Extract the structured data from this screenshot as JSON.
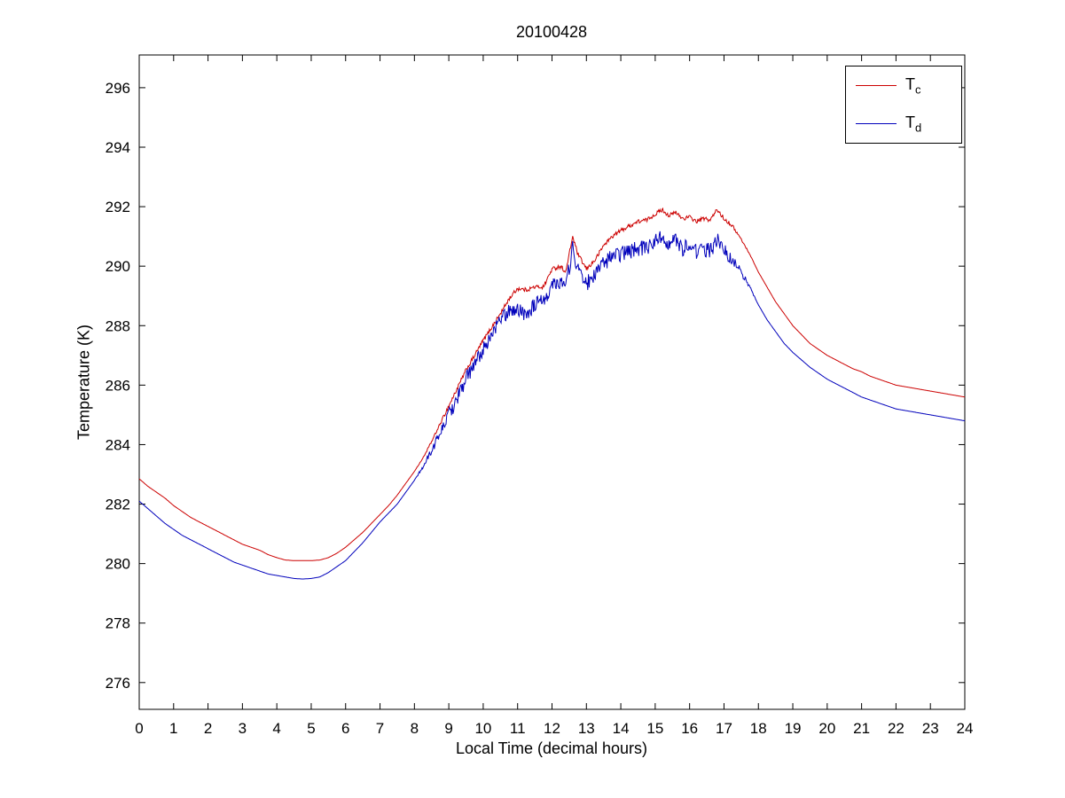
{
  "figure": {
    "background": "#ffffff",
    "axis_color": "#000000"
  },
  "chart_data": {
    "type": "line",
    "title": "20100428",
    "xlabel": "Local Time (decimal hours)",
    "ylabel": "Temperature (K)",
    "xlim": [
      0,
      24
    ],
    "ylim": [
      275.1,
      297.1
    ],
    "xticks": [
      0,
      1,
      2,
      3,
      4,
      5,
      6,
      7,
      8,
      9,
      10,
      11,
      12,
      13,
      14,
      15,
      16,
      17,
      18,
      19,
      20,
      21,
      22,
      23,
      24
    ],
    "yticks": [
      276,
      278,
      280,
      282,
      284,
      286,
      288,
      290,
      292,
      294,
      296
    ],
    "grid": false,
    "legend_position": "top-right",
    "series": [
      {
        "name": "T",
        "subscript": "c",
        "color": "#cc0000",
        "noise": 0.07,
        "points": [
          [
            0,
            282.85
          ],
          [
            0.25,
            282.6
          ],
          [
            0.5,
            282.4
          ],
          [
            0.75,
            282.2
          ],
          [
            1,
            281.95
          ],
          [
            1.25,
            281.75
          ],
          [
            1.5,
            281.55
          ],
          [
            1.75,
            281.4
          ],
          [
            2,
            281.25
          ],
          [
            2.25,
            281.1
          ],
          [
            2.5,
            280.95
          ],
          [
            2.75,
            280.8
          ],
          [
            3,
            280.65
          ],
          [
            3.25,
            280.55
          ],
          [
            3.5,
            280.45
          ],
          [
            3.75,
            280.3
          ],
          [
            4,
            280.2
          ],
          [
            4.25,
            280.12
          ],
          [
            4.5,
            280.1
          ],
          [
            4.75,
            280.1
          ],
          [
            5,
            280.1
          ],
          [
            5.25,
            280.12
          ],
          [
            5.5,
            280.2
          ],
          [
            5.75,
            280.35
          ],
          [
            6,
            280.55
          ],
          [
            6.25,
            280.8
          ],
          [
            6.5,
            281.05
          ],
          [
            6.75,
            281.35
          ],
          [
            7,
            281.65
          ],
          [
            7.25,
            281.95
          ],
          [
            7.5,
            282.3
          ],
          [
            7.75,
            282.7
          ],
          [
            8,
            283.1
          ],
          [
            8.25,
            283.55
          ],
          [
            8.5,
            284.1
          ],
          [
            8.75,
            284.7
          ],
          [
            9,
            285.3
          ],
          [
            9.25,
            285.9
          ],
          [
            9.5,
            286.5
          ],
          [
            9.75,
            287.0
          ],
          [
            10,
            287.5
          ],
          [
            10.25,
            287.95
          ],
          [
            10.5,
            288.4
          ],
          [
            10.75,
            288.9
          ],
          [
            11,
            289.25
          ],
          [
            11.25,
            289.2
          ],
          [
            11.5,
            289.3
          ],
          [
            11.75,
            289.3
          ],
          [
            12,
            289.9
          ],
          [
            12.25,
            290.0
          ],
          [
            12.4,
            289.8
          ],
          [
            12.6,
            291.0
          ],
          [
            12.75,
            290.4
          ],
          [
            13,
            289.9
          ],
          [
            13.25,
            290.2
          ],
          [
            13.5,
            290.7
          ],
          [
            13.75,
            291.0
          ],
          [
            14,
            291.2
          ],
          [
            14.25,
            291.35
          ],
          [
            14.5,
            291.5
          ],
          [
            14.75,
            291.55
          ],
          [
            15,
            291.75
          ],
          [
            15.2,
            291.9
          ],
          [
            15.4,
            291.7
          ],
          [
            15.6,
            291.8
          ],
          [
            15.8,
            291.6
          ],
          [
            16,
            291.65
          ],
          [
            16.2,
            291.5
          ],
          [
            16.4,
            291.6
          ],
          [
            16.6,
            291.55
          ],
          [
            16.8,
            291.9
          ],
          [
            17,
            291.6
          ],
          [
            17.25,
            291.35
          ],
          [
            17.5,
            290.9
          ],
          [
            17.75,
            290.4
          ],
          [
            18,
            289.8
          ],
          [
            18.25,
            289.3
          ],
          [
            18.5,
            288.8
          ],
          [
            18.75,
            288.4
          ],
          [
            19,
            288.0
          ],
          [
            19.25,
            287.7
          ],
          [
            19.5,
            287.4
          ],
          [
            19.75,
            287.2
          ],
          [
            20,
            287.0
          ],
          [
            20.25,
            286.85
          ],
          [
            20.5,
            286.7
          ],
          [
            20.75,
            286.55
          ],
          [
            21,
            286.45
          ],
          [
            21.25,
            286.3
          ],
          [
            21.5,
            286.2
          ],
          [
            21.75,
            286.1
          ],
          [
            22,
            286.0
          ],
          [
            22.25,
            285.95
          ],
          [
            22.5,
            285.9
          ],
          [
            22.75,
            285.85
          ],
          [
            23,
            285.8
          ],
          [
            23.25,
            285.75
          ],
          [
            23.5,
            285.7
          ],
          [
            23.75,
            285.65
          ],
          [
            24,
            285.6
          ]
        ]
      },
      {
        "name": "T",
        "subscript": "d",
        "color": "#0000bb",
        "noise": 0.26,
        "points": [
          [
            0,
            282.1
          ],
          [
            0.25,
            281.85
          ],
          [
            0.5,
            281.6
          ],
          [
            0.75,
            281.35
          ],
          [
            1,
            281.15
          ],
          [
            1.25,
            280.95
          ],
          [
            1.5,
            280.8
          ],
          [
            1.75,
            280.65
          ],
          [
            2,
            280.5
          ],
          [
            2.25,
            280.35
          ],
          [
            2.5,
            280.2
          ],
          [
            2.75,
            280.05
          ],
          [
            3,
            279.95
          ],
          [
            3.25,
            279.85
          ],
          [
            3.5,
            279.75
          ],
          [
            3.75,
            279.65
          ],
          [
            4,
            279.6
          ],
          [
            4.25,
            279.55
          ],
          [
            4.5,
            279.5
          ],
          [
            4.75,
            279.48
          ],
          [
            5,
            279.5
          ],
          [
            5.25,
            279.55
          ],
          [
            5.5,
            279.7
          ],
          [
            5.75,
            279.9
          ],
          [
            6,
            280.1
          ],
          [
            6.25,
            280.4
          ],
          [
            6.5,
            280.7
          ],
          [
            6.75,
            281.05
          ],
          [
            7,
            281.4
          ],
          [
            7.25,
            281.7
          ],
          [
            7.5,
            282.0
          ],
          [
            7.75,
            282.4
          ],
          [
            8,
            282.8
          ],
          [
            8.25,
            283.25
          ],
          [
            8.5,
            283.8
          ],
          [
            8.75,
            284.4
          ],
          [
            9,
            285.0
          ],
          [
            9.25,
            285.6
          ],
          [
            9.5,
            286.2
          ],
          [
            9.75,
            286.7
          ],
          [
            10,
            287.2
          ],
          [
            10.25,
            287.7
          ],
          [
            10.5,
            288.2
          ],
          [
            10.75,
            288.5
          ],
          [
            11,
            288.55
          ],
          [
            11.25,
            288.4
          ],
          [
            11.5,
            288.7
          ],
          [
            11.75,
            288.8
          ],
          [
            12,
            289.4
          ],
          [
            12.25,
            289.5
          ],
          [
            12.4,
            289.3
          ],
          [
            12.6,
            290.6
          ],
          [
            12.75,
            289.9
          ],
          [
            13,
            289.4
          ],
          [
            13.25,
            289.7
          ],
          [
            13.5,
            290.1
          ],
          [
            13.75,
            290.3
          ],
          [
            14,
            290.4
          ],
          [
            14.25,
            290.5
          ],
          [
            14.5,
            290.6
          ],
          [
            14.75,
            290.6
          ],
          [
            15,
            290.85
          ],
          [
            15.2,
            291.0
          ],
          [
            15.4,
            290.8
          ],
          [
            15.6,
            290.85
          ],
          [
            15.8,
            290.6
          ],
          [
            16,
            290.7
          ],
          [
            16.2,
            290.5
          ],
          [
            16.4,
            290.6
          ],
          [
            16.6,
            290.5
          ],
          [
            16.8,
            290.9
          ],
          [
            17,
            290.5
          ],
          [
            17.25,
            290.2
          ],
          [
            17.5,
            289.8
          ],
          [
            17.75,
            289.3
          ],
          [
            18,
            288.7
          ],
          [
            18.25,
            288.2
          ],
          [
            18.5,
            287.8
          ],
          [
            18.75,
            287.4
          ],
          [
            19,
            287.1
          ],
          [
            19.25,
            286.85
          ],
          [
            19.5,
            286.6
          ],
          [
            19.75,
            286.4
          ],
          [
            20,
            286.2
          ],
          [
            20.25,
            286.05
          ],
          [
            20.5,
            285.9
          ],
          [
            20.75,
            285.75
          ],
          [
            21,
            285.6
          ],
          [
            21.25,
            285.5
          ],
          [
            21.5,
            285.4
          ],
          [
            21.75,
            285.3
          ],
          [
            22,
            285.2
          ],
          [
            22.25,
            285.15
          ],
          [
            22.5,
            285.1
          ],
          [
            22.75,
            285.05
          ],
          [
            23,
            285.0
          ],
          [
            23.25,
            284.95
          ],
          [
            23.5,
            284.9
          ],
          [
            23.75,
            284.85
          ],
          [
            24,
            284.8
          ]
        ]
      }
    ]
  }
}
